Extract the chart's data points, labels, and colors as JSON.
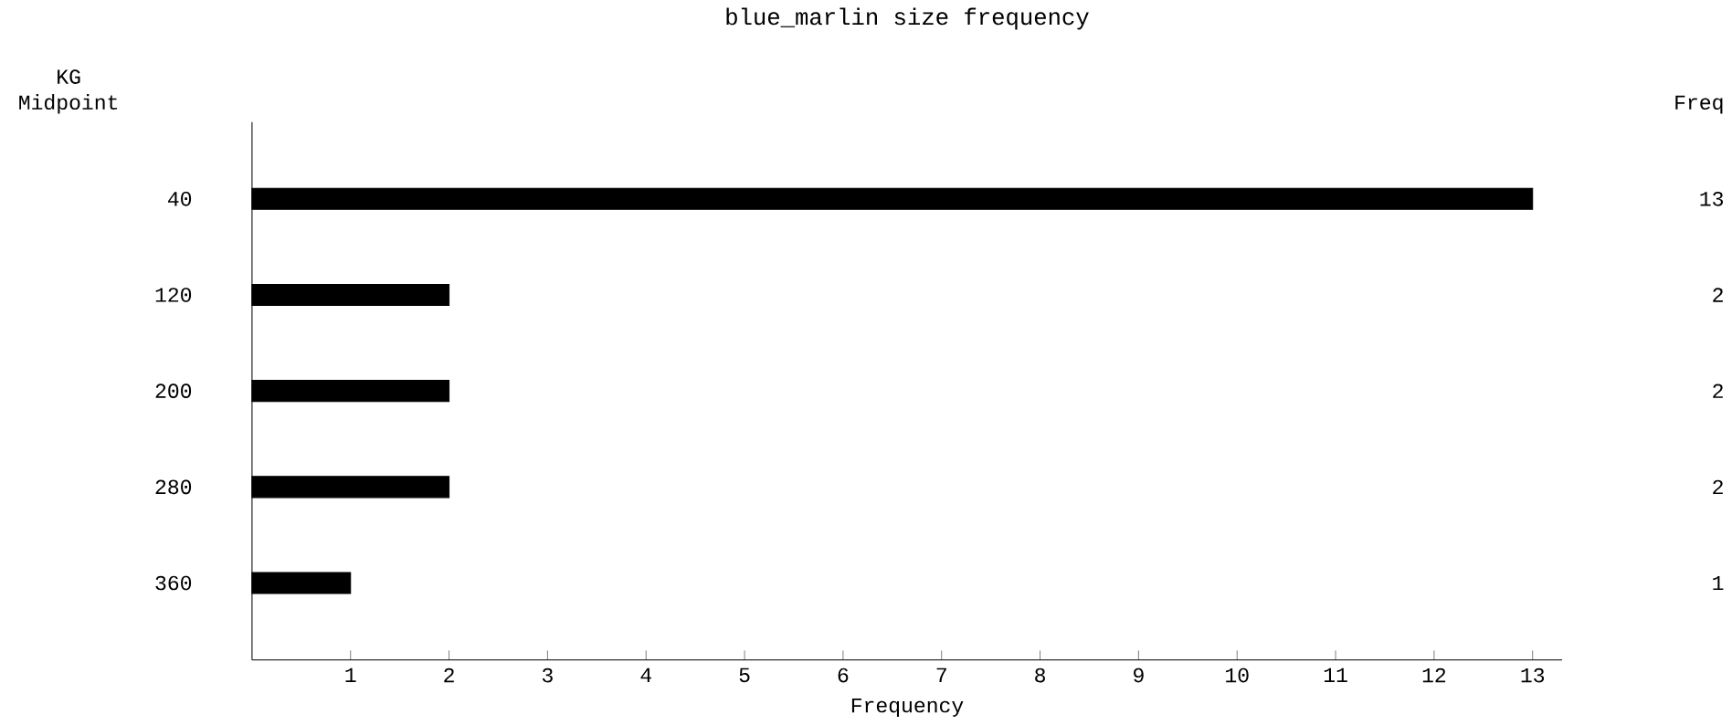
{
  "chart_data": {
    "type": "bar",
    "orientation": "horizontal",
    "title": "blue_marlin  size frequency",
    "xlabel": "Frequency",
    "ylabel": "KG Midpoint",
    "categories": [
      "40",
      "120",
      "200",
      "280",
      "360"
    ],
    "values": [
      13,
      2,
      2,
      2,
      1
    ],
    "value_labels": [
      "13",
      "2",
      "2",
      "2",
      "1"
    ],
    "color": "#000000",
    "xlim": [
      0,
      13.3
    ],
    "xticks": [
      1,
      2,
      3,
      4,
      5,
      6,
      7,
      8,
      9,
      10,
      11,
      12,
      13
    ],
    "annotations": [
      "Freq"
    ],
    "grid": false
  }
}
